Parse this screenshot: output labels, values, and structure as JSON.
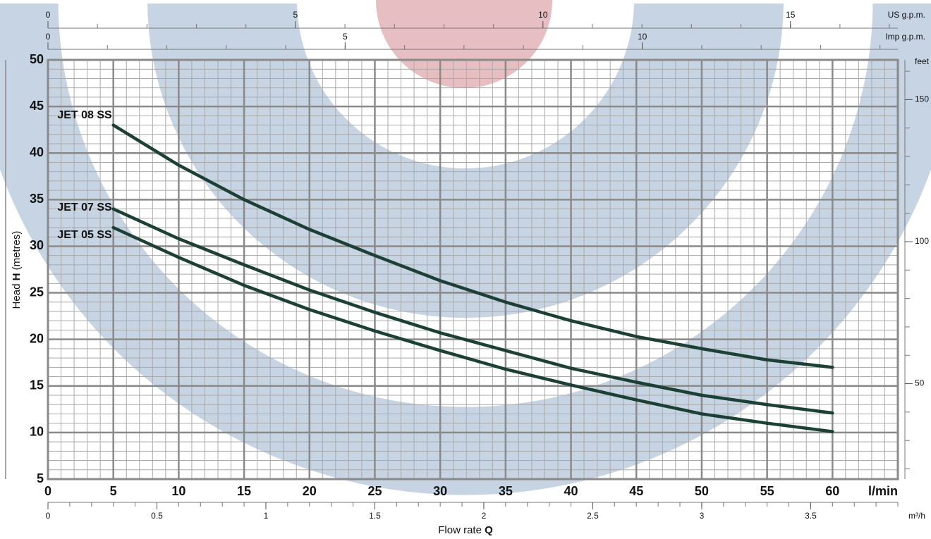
{
  "chart_data": {
    "type": "line",
    "x": [
      5,
      10,
      15,
      20,
      25,
      30,
      35,
      40,
      45,
      50,
      55,
      60
    ],
    "series": [
      {
        "name": "JET 08 SS",
        "color": "#1c4036",
        "values": [
          43,
          38.7,
          35,
          31.8,
          29,
          26.3,
          24,
          22,
          20.3,
          19,
          17.8,
          17
        ]
      },
      {
        "name": "JET 07 SS",
        "color": "#1c4036",
        "values": [
          34,
          30.8,
          28,
          25.3,
          22.9,
          20.7,
          18.8,
          16.9,
          15.4,
          14,
          13,
          12.1
        ]
      },
      {
        "name": "JET 05 SS",
        "color": "#1c4036",
        "values": [
          32,
          28.8,
          25.8,
          23.2,
          20.9,
          18.8,
          16.8,
          15.1,
          13.5,
          12,
          11,
          10.1
        ]
      }
    ],
    "xlim": [
      0,
      65
    ],
    "xticks": [
      0,
      5,
      10,
      15,
      20,
      25,
      30,
      35,
      40,
      45,
      50,
      55,
      60
    ],
    "xminor": 1,
    "xunit": "l/min",
    "ylim": [
      5,
      50
    ],
    "yticks": [
      5,
      10,
      15,
      20,
      25,
      30,
      35,
      40,
      45,
      50
    ],
    "yminor": 1,
    "grid": true,
    "ylabel_parts": [
      "Head",
      "H",
      "(metres)"
    ],
    "xlabel_parts": [
      "Flow rate",
      "Q"
    ],
    "top_axes": [
      {
        "unit": "US g.p.m.",
        "lim": [
          0,
          17.17
        ],
        "ticks": [
          0,
          5,
          10,
          15
        ],
        "minor": 1
      },
      {
        "unit": "Imp g.p.m.",
        "lim": [
          0,
          14.3
        ],
        "ticks": [
          0,
          5,
          10
        ],
        "minor": 1
      }
    ],
    "bottom_axis": {
      "unit": "m³/h",
      "lim": [
        0,
        3.9
      ],
      "ticks": [
        0,
        0.5,
        1,
        1.5,
        2,
        2.5,
        3,
        3.5
      ],
      "minor": 0.1
    },
    "right_axis": {
      "unit": "feet",
      "lim": [
        16.4,
        164
      ],
      "ticks": [
        50,
        100,
        150
      ],
      "minor": 10
    }
  }
}
